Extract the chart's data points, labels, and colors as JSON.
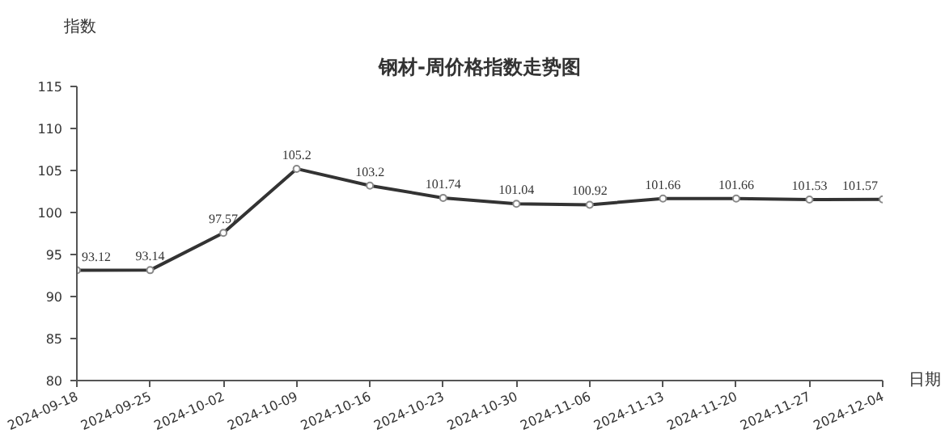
{
  "chart_data": {
    "type": "line",
    "title": "钢材-周价格指数走势图",
    "xlabel": "日期",
    "ylabel": "指数",
    "categories": [
      "2024-09-18",
      "2024-09-25",
      "2024-10-02",
      "2024-10-09",
      "2024-10-16",
      "2024-10-23",
      "2024-10-30",
      "2024-11-06",
      "2024-11-13",
      "2024-11-20",
      "2024-11-27",
      "2024-12-04"
    ],
    "series": [
      {
        "color": "#333333",
        "values": [
          93.12,
          93.14,
          97.57,
          105.2,
          103.2,
          101.74,
          101.04,
          100.92,
          101.66,
          101.66,
          101.53,
          101.57
        ]
      }
    ],
    "ylim": [
      80,
      115
    ],
    "yticks": [
      80,
      85,
      90,
      95,
      100,
      105,
      110,
      115
    ],
    "data_labels": true,
    "marker": "circle",
    "line_style": "solid",
    "grid": false
  }
}
